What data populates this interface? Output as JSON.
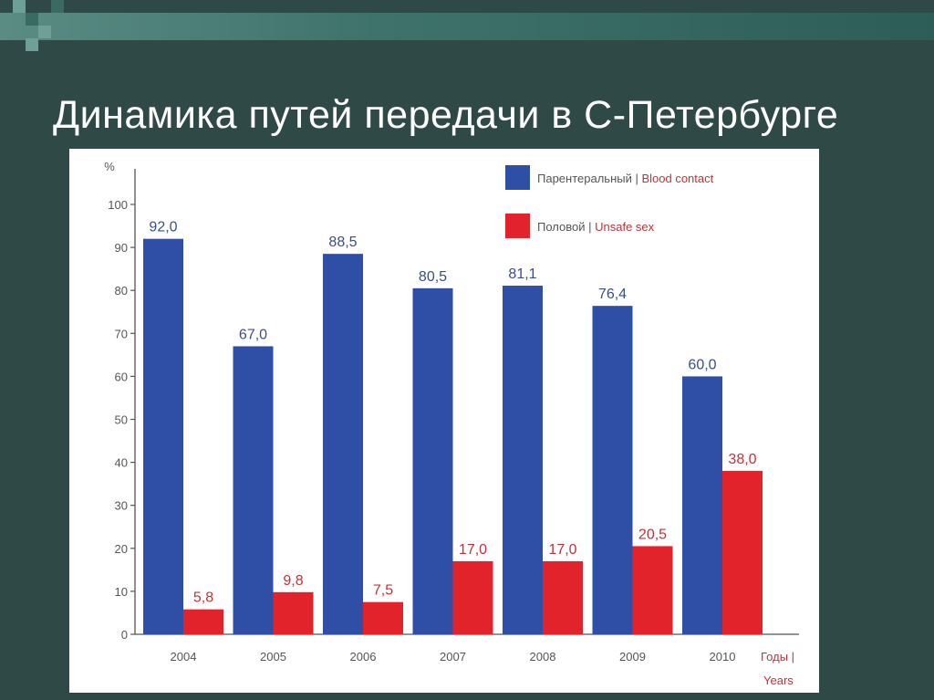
{
  "slide": {
    "title": "Динамика путей передачи в С-Петербурге"
  },
  "chart_data": {
    "type": "bar",
    "title": "",
    "ylabel": "%",
    "xlabel_line1": "Годы |",
    "xlabel_line2": "Years",
    "ylim": [
      0,
      100
    ],
    "yticks": [
      0,
      10,
      20,
      30,
      40,
      50,
      60,
      70,
      80,
      90,
      100
    ],
    "categories": [
      "2004",
      "2005",
      "2006",
      "2007",
      "2008",
      "2009",
      "2010"
    ],
    "legend_position": "top-right",
    "series": [
      {
        "name_ru": "Парентеральный",
        "name_en": "Blood contact",
        "color": "#2f4ea6",
        "values": [
          92.0,
          67.0,
          88.5,
          80.5,
          81.1,
          76.4,
          60.0
        ],
        "labels": [
          "92,0",
          "67,0",
          "88,5",
          "80,5",
          "81,1",
          "76,4",
          "60,0"
        ],
        "label_color": "#3a4f8a"
      },
      {
        "name_ru": "Половой",
        "name_en": "Unsafe sex",
        "color": "#e3232b",
        "values": [
          5.8,
          9.8,
          7.5,
          17.0,
          17.0,
          20.5,
          38.0
        ],
        "labels": [
          "5,8",
          "9,8",
          "7,5",
          "17,0",
          "17,0",
          "20,5",
          "38,0"
        ],
        "label_color": "#c7303a"
      }
    ]
  }
}
